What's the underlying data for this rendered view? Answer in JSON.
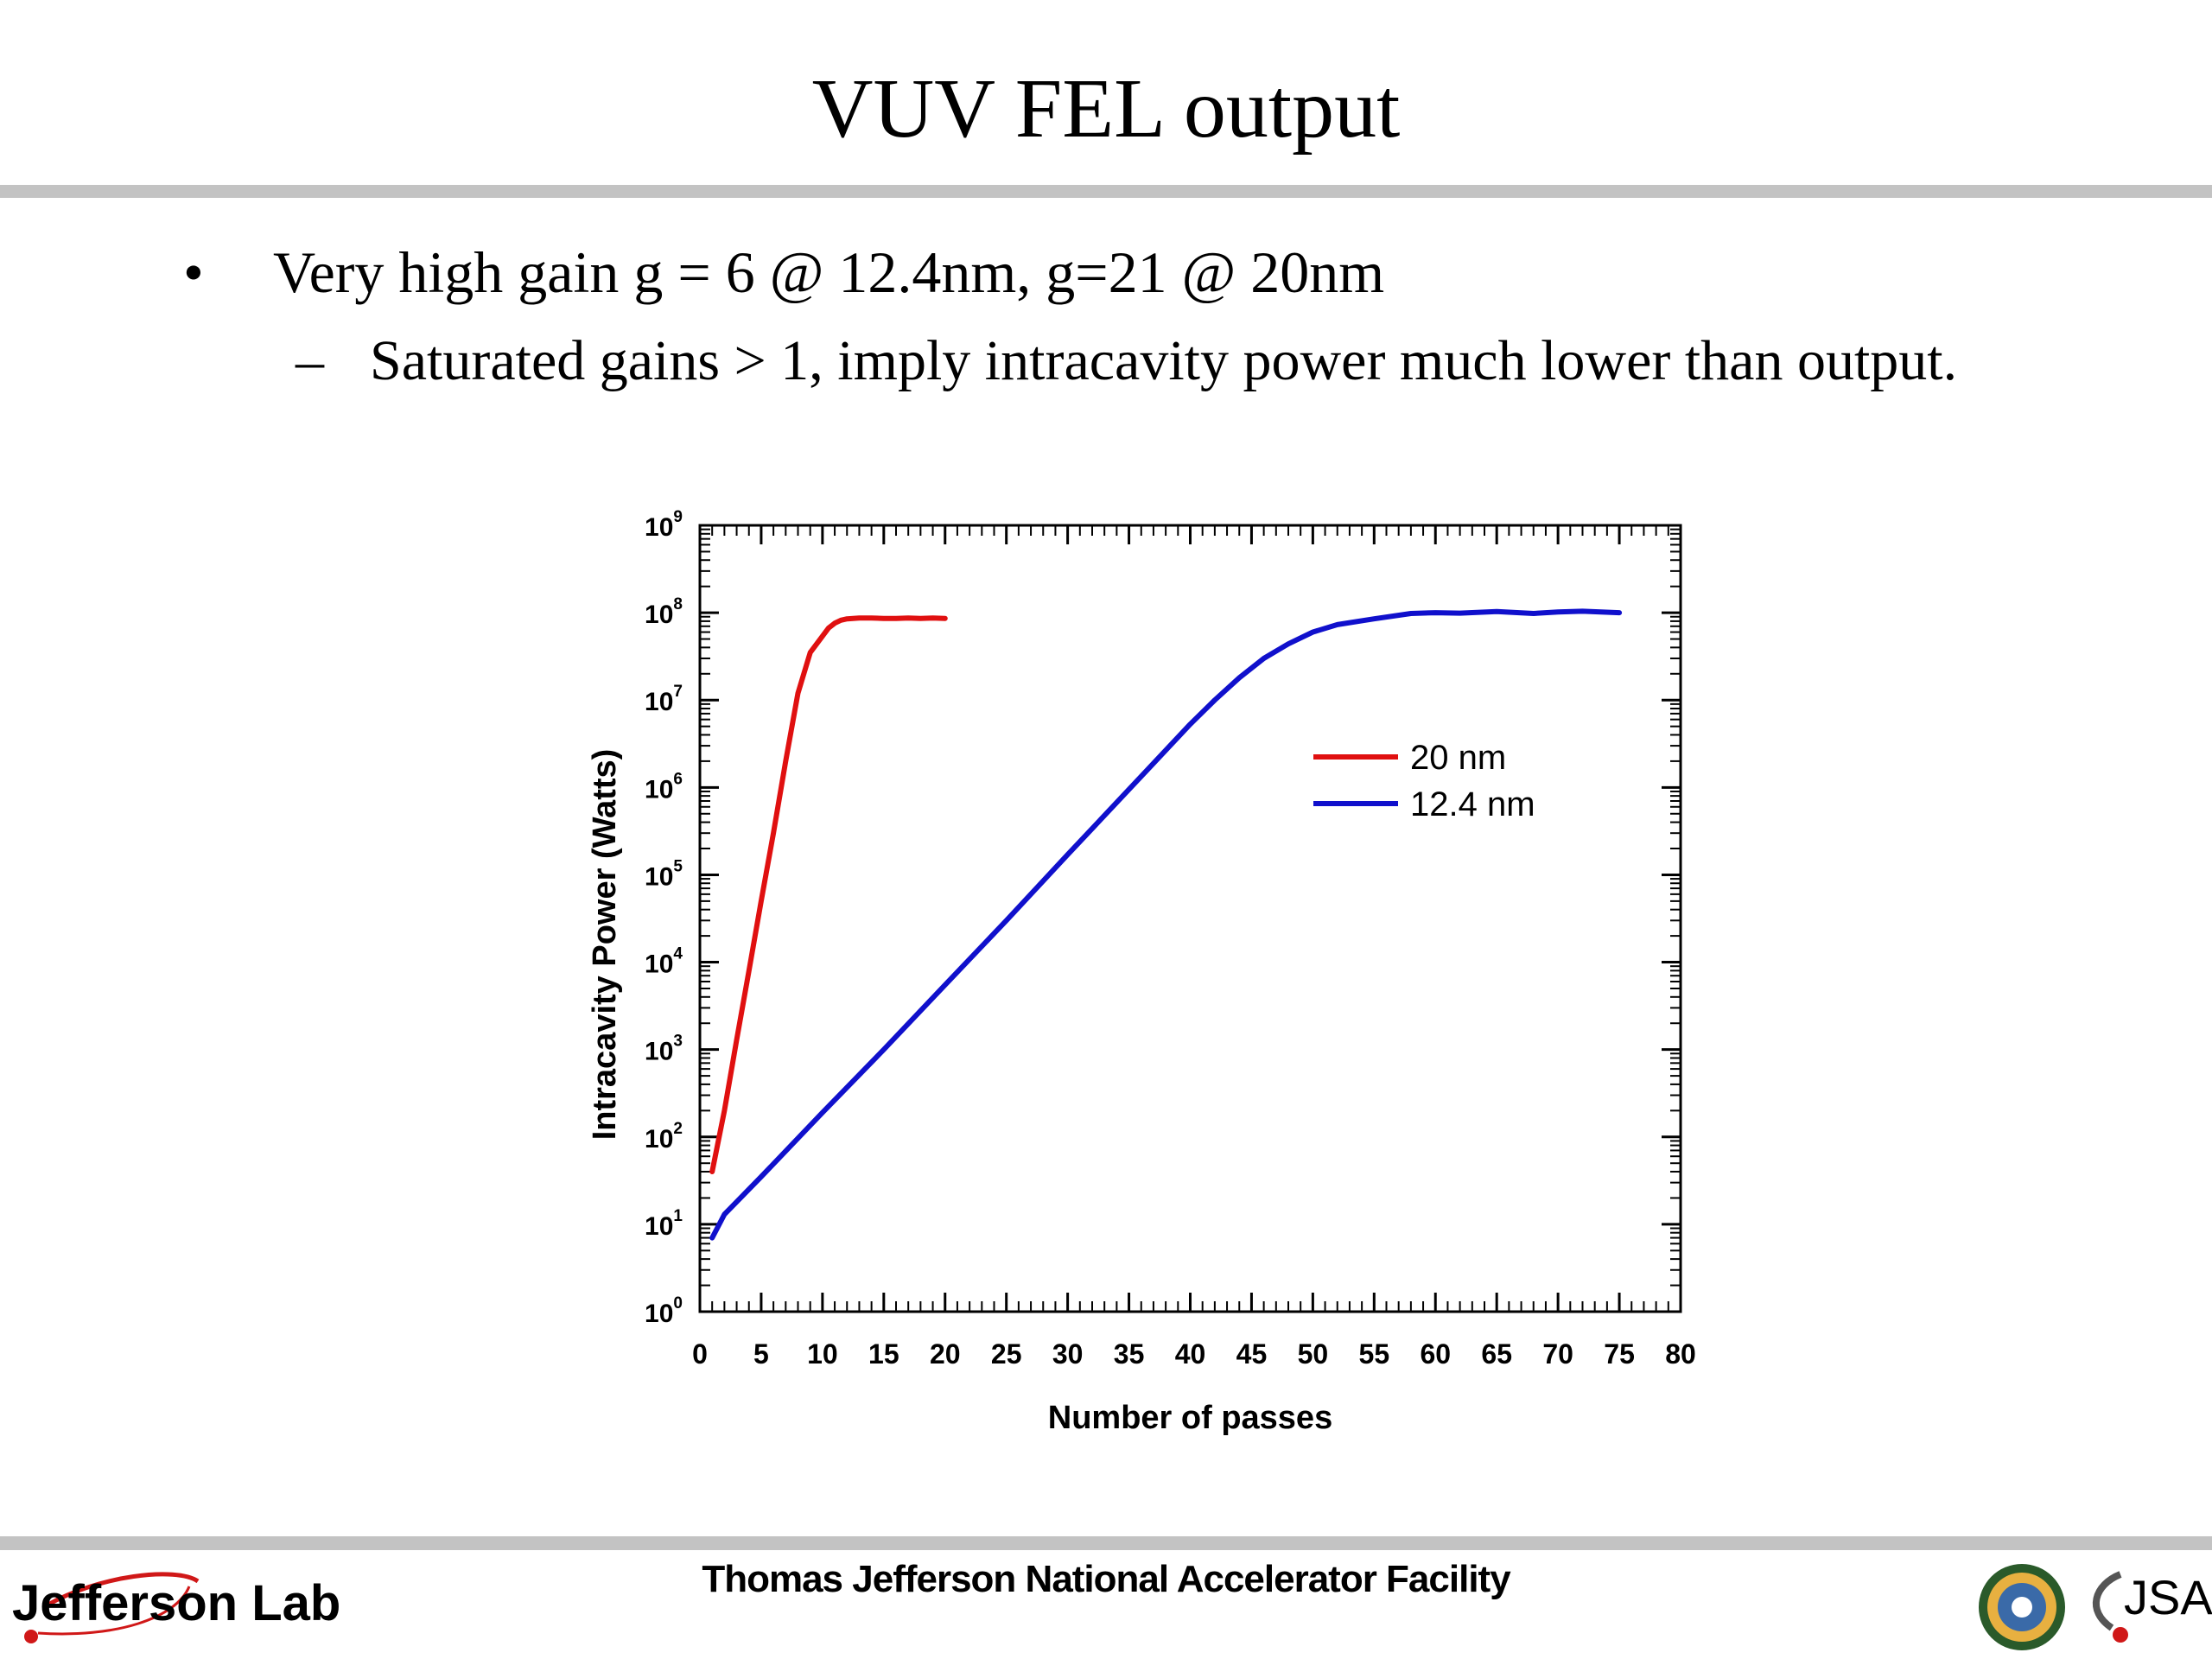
{
  "slide": {
    "title": "VUV FEL output",
    "bullet": "Very high gain g = 6 @ 12.4nm, g=21 @ 20nm",
    "sub_bullet": "Saturated gains > 1, imply intracavity power much lower than output."
  },
  "footer": {
    "institution": "Thomas Jefferson National Accelerator Facility",
    "logo_left_text": "Jefferson Lab",
    "logo_right_text": "JSA"
  },
  "chart_data": {
    "type": "line",
    "title": "",
    "xlabel": "Number of passes",
    "ylabel": "Intracavity Power (Watts)",
    "xlim": [
      0,
      80
    ],
    "ylim": [
      1,
      1000000000
    ],
    "yscale": "log",
    "grid": false,
    "legend_position": "right-middle",
    "x_ticks": [
      0,
      5,
      10,
      15,
      20,
      25,
      30,
      35,
      40,
      45,
      50,
      55,
      60,
      65,
      70,
      75,
      80
    ],
    "y_ticks": [
      {
        "value": 1,
        "base": "10",
        "exp": "0"
      },
      {
        "value": 10,
        "base": "10",
        "exp": "1"
      },
      {
        "value": 100,
        "base": "10",
        "exp": "2"
      },
      {
        "value": 1000,
        "base": "10",
        "exp": "3"
      },
      {
        "value": 10000,
        "base": "10",
        "exp": "4"
      },
      {
        "value": 100000,
        "base": "10",
        "exp": "5"
      },
      {
        "value": 1000000,
        "base": "10",
        "exp": "6"
      },
      {
        "value": 10000000,
        "base": "10",
        "exp": "7"
      },
      {
        "value": 100000000,
        "base": "10",
        "exp": "8"
      },
      {
        "value": 1000000000,
        "base": "10",
        "exp": "9"
      }
    ],
    "series": [
      {
        "name": "20 nm",
        "color": "#e01010",
        "x": [
          1,
          2,
          3,
          4,
          5,
          6,
          7,
          8,
          9,
          10,
          10.5,
          11,
          11.5,
          12,
          13,
          14,
          15,
          16,
          17,
          18,
          19,
          20
        ],
        "y": [
          40,
          200,
          1300,
          8000,
          50000,
          300000,
          2000000,
          12000000,
          35000000,
          54000000,
          67000000,
          76000000,
          82000000,
          85000000,
          87000000,
          87000000,
          86000000,
          86000000,
          87000000,
          86000000,
          87000000,
          86000000
        ]
      },
      {
        "name": "12.4 nm",
        "color": "#1010cc",
        "x": [
          1,
          2,
          5,
          10,
          15,
          20,
          25,
          30,
          35,
          40,
          42,
          44,
          46,
          48,
          50,
          52,
          55,
          58,
          60,
          62,
          65,
          68,
          70,
          72,
          75
        ],
        "y": [
          7,
          13,
          35,
          190,
          1000,
          5500,
          30000,
          170000,
          950000,
          5300000,
          10000000,
          18000000,
          30000000,
          44000000,
          60000000,
          73000000,
          85000000,
          98000000,
          100000000,
          99000000,
          103000000,
          98000000,
          102000000,
          104000000,
          100000000
        ]
      }
    ]
  }
}
